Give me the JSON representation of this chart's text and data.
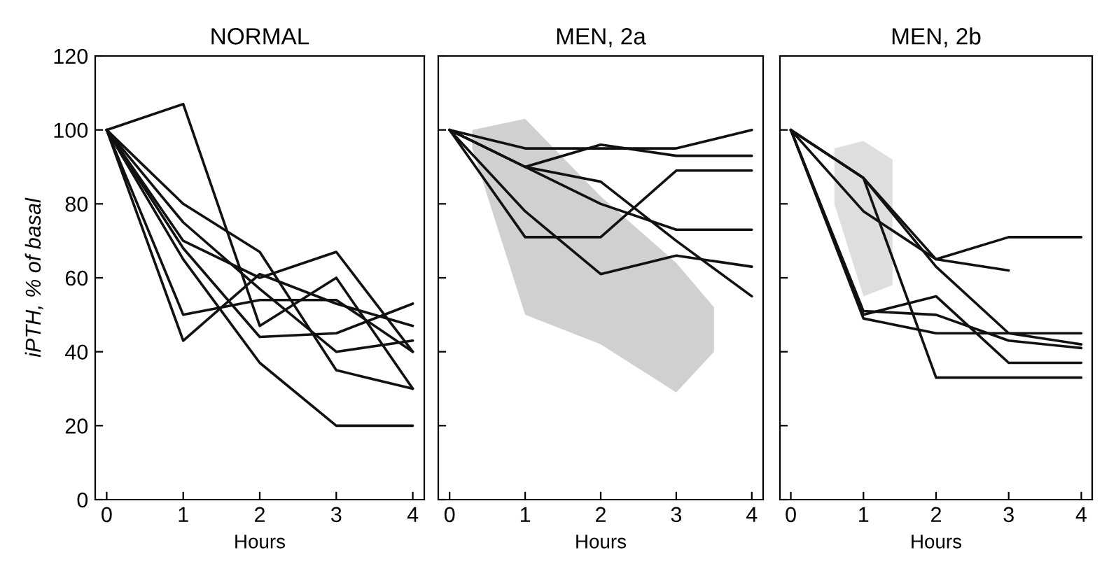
{
  "chart_data": [
    {
      "type": "line",
      "title": "NORMAL",
      "xlabel": "Hours",
      "ylabel": "iPTH, % of basal",
      "x": [
        0,
        1,
        2,
        3,
        4
      ],
      "xlim": [
        -0.15,
        4.15
      ],
      "ylim": [
        0,
        120
      ],
      "xticks": [
        0,
        1,
        2,
        3,
        4
      ],
      "yticks": [
        0,
        20,
        40,
        60,
        80,
        100,
        120
      ],
      "grid": false,
      "series": [
        {
          "color": "#111111",
          "values": [
            100,
            107,
            47,
            60,
            30
          ]
        },
        {
          "color": "#111111",
          "values": [
            100,
            50,
            54,
            54,
            40
          ]
        },
        {
          "color": "#111111",
          "values": [
            100,
            43,
            61,
            53,
            47
          ]
        },
        {
          "color": "#111111",
          "values": [
            100,
            80,
            67,
            35,
            30
          ]
        },
        {
          "color": "#111111",
          "values": [
            100,
            70,
            60,
            67,
            40
          ]
        },
        {
          "color": "#111111",
          "values": [
            100,
            68,
            44,
            45,
            53
          ]
        },
        {
          "color": "#111111",
          "values": [
            100,
            65,
            37,
            20,
            20
          ]
        },
        {
          "color": "#111111",
          "values": [
            100,
            75,
            57,
            40,
            43
          ]
        }
      ]
    },
    {
      "type": "line",
      "title": "MEN, 2a",
      "xlabel": "Hours",
      "x": [
        0,
        1,
        2,
        3,
        4
      ],
      "xlim": [
        -0.15,
        4.15
      ],
      "ylim": [
        0,
        120
      ],
      "xticks": [
        0,
        1,
        2,
        3,
        4
      ],
      "yticks": [
        0,
        20,
        40,
        60,
        80,
        100,
        120
      ],
      "tick_labels": "x",
      "grid": false,
      "series": [
        {
          "type": "area",
          "color": "#b0b0b0",
          "x": [
            0.3,
            1,
            2,
            3,
            3.5
          ],
          "values": [
            null,
            null,
            null,
            null,
            null
          ],
          "lower": [
            95,
            50,
            42,
            29,
            40
          ],
          "upper": [
            100,
            103,
            82,
            64,
            52
          ]
        },
        {
          "color": "#111111",
          "values": [
            100,
            95,
            95,
            95,
            100
          ]
        },
        {
          "color": "#111111",
          "values": [
            100,
            90,
            96,
            93,
            93
          ]
        },
        {
          "color": "#111111",
          "values": [
            100,
            90,
            86,
            70,
            55
          ]
        },
        {
          "color": "#111111",
          "values": [
            100,
            90,
            80,
            73,
            73
          ]
        },
        {
          "color": "#111111",
          "values": [
            100,
            71,
            71,
            89,
            89
          ]
        },
        {
          "color": "#111111",
          "values": [
            100,
            78,
            61,
            66,
            63
          ]
        }
      ]
    },
    {
      "type": "line",
      "title": "MEN, 2b",
      "xlabel": "Hours",
      "x": [
        0,
        1,
        2,
        3,
        4
      ],
      "xlim": [
        -0.15,
        4.15
      ],
      "ylim": [
        0,
        120
      ],
      "xticks": [
        0,
        1,
        2,
        3,
        4
      ],
      "yticks": [
        0,
        20,
        40,
        60,
        80,
        100,
        120
      ],
      "tick_labels": "x",
      "grid": false,
      "series": [
        {
          "type": "area",
          "color": "#c8c8c8",
          "x": [
            0.6,
            1,
            1.4
          ],
          "values": [
            null,
            null,
            null
          ],
          "lower": [
            80,
            55,
            58
          ],
          "upper": [
            95,
            97,
            92
          ]
        },
        {
          "color": "#111111",
          "values": [
            100,
            87,
            65,
            71,
            71
          ]
        },
        {
          "color": "#111111",
          "values": [
            100,
            78,
            65,
            62,
            null
          ]
        },
        {
          "color": "#111111",
          "values": [
            100,
            87,
            63,
            45,
            45
          ]
        },
        {
          "color": "#111111",
          "values": [
            100,
            87,
            33,
            33,
            33
          ]
        },
        {
          "color": "#111111",
          "values": [
            100,
            50,
            55,
            37,
            37
          ]
        },
        {
          "color": "#111111",
          "values": [
            100,
            49,
            45,
            45,
            42
          ]
        },
        {
          "color": "#111111",
          "values": [
            100,
            51,
            50,
            43,
            41
          ]
        }
      ]
    }
  ]
}
